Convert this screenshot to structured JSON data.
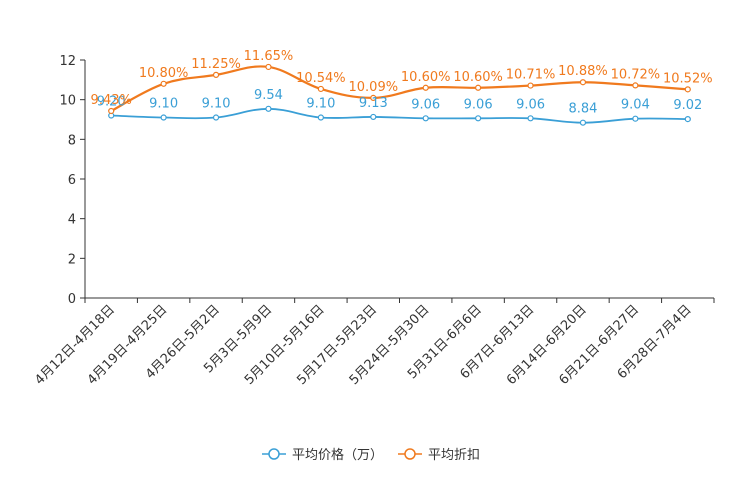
{
  "chart_data": {
    "type": "line",
    "title": "",
    "xlabel": "",
    "ylabel": "",
    "ylim": [
      0,
      12
    ],
    "yticks": [
      0,
      2,
      4,
      6,
      8,
      10,
      12
    ],
    "grid": false,
    "legend_position": "bottom-center",
    "categories": [
      "4月12日-4月18日",
      "4月19日-4月25日",
      "4月26日-5月2日",
      "5月3日-5月9日",
      "5月10日-5月16日",
      "5月17日-5月23日",
      "5月24日-5月30日",
      "5月31日-6月6日",
      "6月7日-6月13日",
      "6月14日-6月20日",
      "6月21日-6月27日",
      "6月28日-7月4日"
    ],
    "series": [
      {
        "name": "平均价格（万）",
        "color": "#3a9fd6",
        "values": [
          9.2,
          9.1,
          9.1,
          9.54,
          9.1,
          9.13,
          9.06,
          9.06,
          9.06,
          8.84,
          9.04,
          9.02
        ],
        "labels": [
          "9.20",
          "9.10",
          "9.10",
          "9.54",
          "9.10",
          "9.13",
          "9.06",
          "9.06",
          "9.06",
          "8.84",
          "9.04",
          "9.02"
        ]
      },
      {
        "name": "平均折扣",
        "color": "#f07a1e",
        "values": [
          9.43,
          10.8,
          11.25,
          11.65,
          10.54,
          10.09,
          10.6,
          10.6,
          10.71,
          10.88,
          10.72,
          10.52
        ],
        "labels": [
          "9.43%",
          "10.80%",
          "11.25%",
          "11.65%",
          "10.54%",
          "10.09%",
          "10.60%",
          "10.60%",
          "10.71%",
          "10.88%",
          "10.72%",
          "10.52%"
        ]
      }
    ]
  }
}
